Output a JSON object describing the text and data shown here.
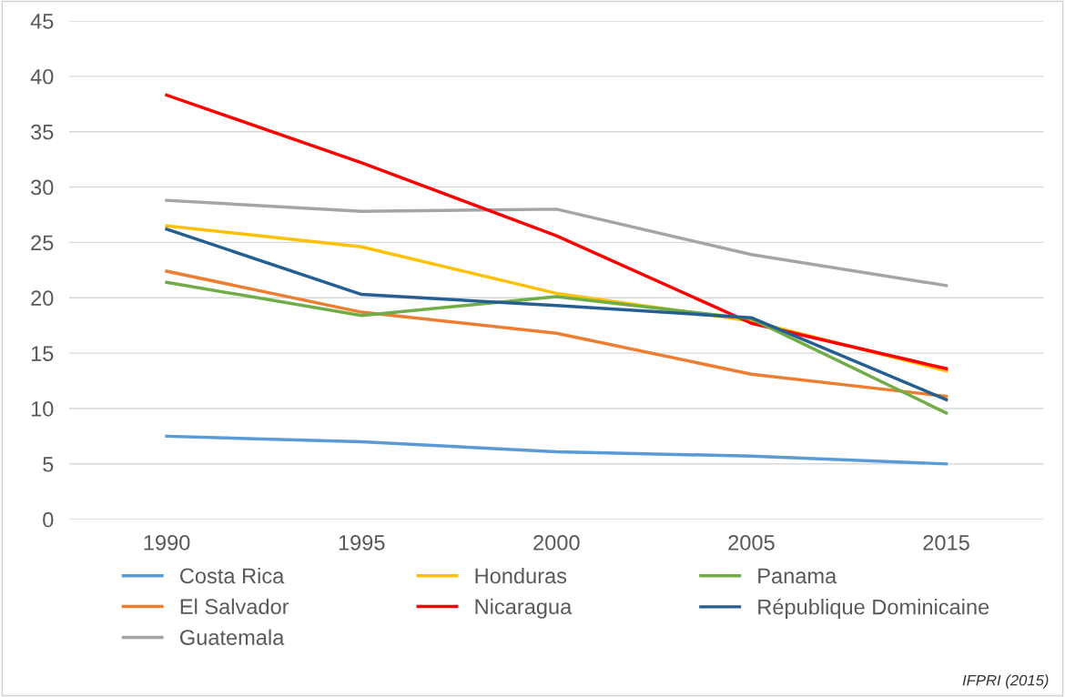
{
  "chart_data": {
    "type": "line",
    "categories": [
      "1990",
      "1995",
      "2000",
      "2005",
      "2015"
    ],
    "series": [
      {
        "name": "Costa Rica",
        "color": "#5b9bd5",
        "values": [
          7.5,
          7.0,
          6.1,
          5.7,
          5.0
        ]
      },
      {
        "name": "El Salvador",
        "color": "#ed7d31",
        "values": [
          22.4,
          18.7,
          16.8,
          13.1,
          11.1
        ]
      },
      {
        "name": "Guatemala",
        "color": "#a5a5a5",
        "values": [
          28.8,
          27.8,
          28.0,
          23.9,
          21.1
        ]
      },
      {
        "name": "Honduras",
        "color": "#ffc000",
        "values": [
          26.5,
          24.6,
          20.4,
          17.9,
          13.4
        ]
      },
      {
        "name": "Nicaragua",
        "color": "#ff0000",
        "values": [
          38.3,
          32.2,
          25.6,
          17.7,
          13.6
        ]
      },
      {
        "name": "Panama",
        "color": "#70ad47",
        "values": [
          21.4,
          18.4,
          20.1,
          18.1,
          9.6
        ]
      },
      {
        "name": "République Dominicaine",
        "color": "#255e91",
        "values": [
          26.2,
          20.3,
          19.3,
          18.2,
          10.8
        ]
      }
    ],
    "ylim": [
      0,
      45
    ],
    "yticks": [
      0,
      5,
      10,
      15,
      20,
      25,
      30,
      35,
      40,
      45
    ],
    "grid": "y",
    "legend": "bottom",
    "marker": "none",
    "line_style": "solid",
    "annotations": [
      "IFPRI (2015)"
    ]
  }
}
